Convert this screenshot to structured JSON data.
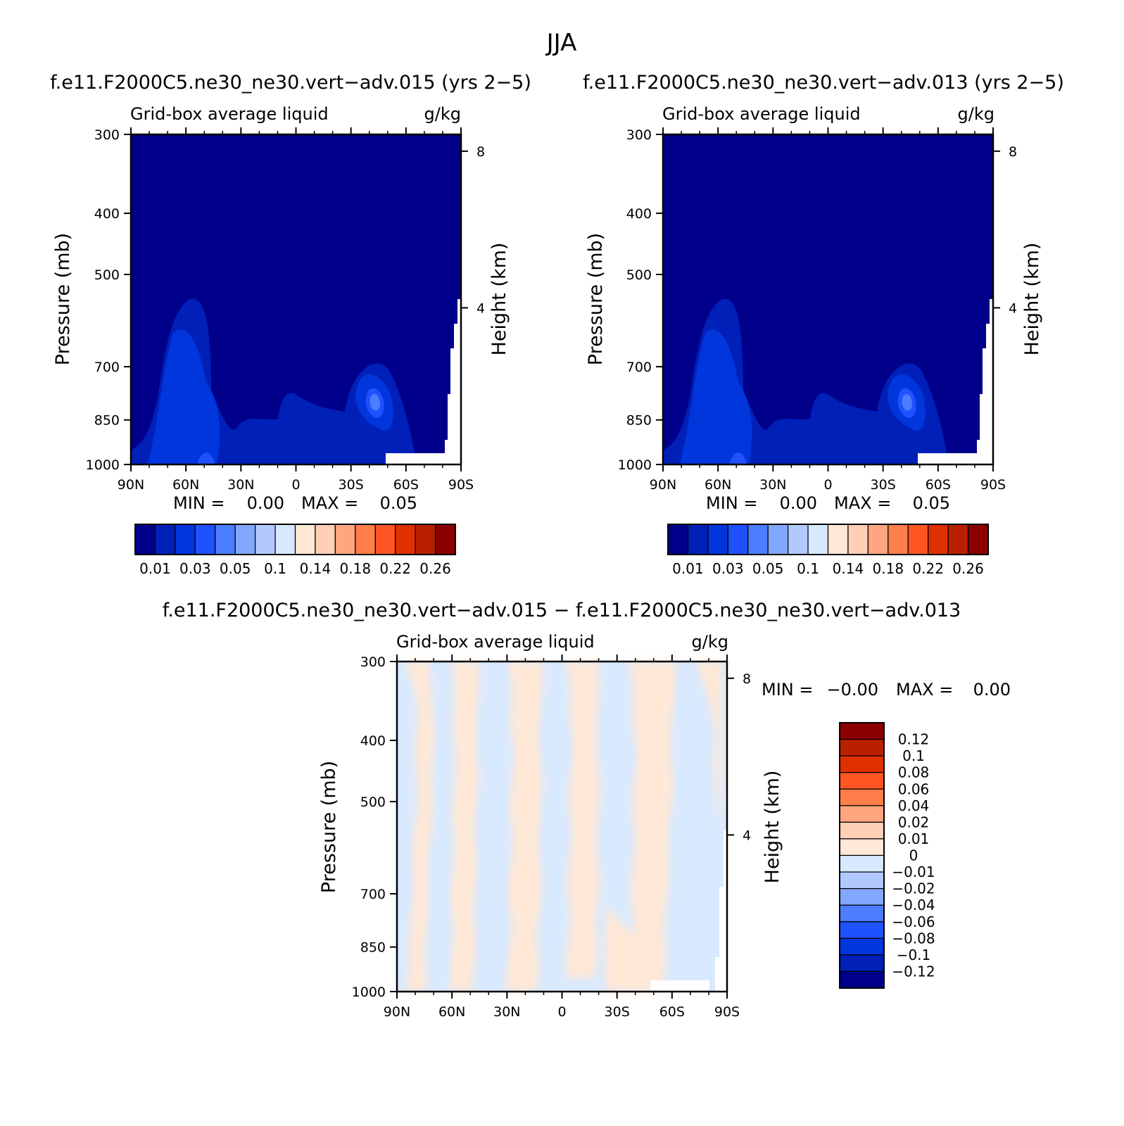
{
  "title": "JJA",
  "colors": {
    "ramp": [
      "#00008a",
      "#0020b8",
      "#0036dc",
      "#1f51ff",
      "#4c7cff",
      "#82a7ff",
      "#b2c9ff",
      "#d8e9ff",
      "#ffe8d6",
      "#ffcfb6",
      "#ffa680",
      "#ff7e4a",
      "#ff5522",
      "#e03000",
      "#b82000",
      "#8a0000"
    ]
  },
  "chart_data": [
    {
      "type": "heatmap",
      "title": "f.e11.F2000C5.ne30_ne30.vert-adv.015 (yrs 2-5)",
      "subtitle_left": "Grid-box average liquid",
      "subtitle_right": "g/kg",
      "xlabel": "",
      "ylabel": "Pressure (mb)",
      "ylabel_right": "Height (km)",
      "x_ticks": [
        "90N",
        "60N",
        "30N",
        "0",
        "30S",
        "60S",
        "90S"
      ],
      "y_ticks": [
        300,
        400,
        500,
        700,
        850,
        1000
      ],
      "y_right_ticks": [
        8,
        4
      ],
      "ylim": [
        1000,
        300
      ],
      "stats": {
        "min_label": "MIN =",
        "min": "0.00",
        "max_label": "MAX =",
        "max": "0.05"
      },
      "colorbar_labels": [
        "0.01",
        "0.03",
        "0.05",
        "0.1",
        "0.14",
        "0.18",
        "0.22",
        "0.26"
      ]
    },
    {
      "type": "heatmap",
      "title": "f.e11.F2000C5.ne30_ne30.vert-adv.013 (yrs 2-5)",
      "subtitle_left": "Grid-box average liquid",
      "subtitle_right": "g/kg",
      "xlabel": "",
      "ylabel": "Pressure (mb)",
      "ylabel_right": "Height (km)",
      "x_ticks": [
        "90N",
        "60N",
        "30N",
        "0",
        "30S",
        "60S",
        "90S"
      ],
      "y_ticks": [
        300,
        400,
        500,
        700,
        850,
        1000
      ],
      "y_right_ticks": [
        8,
        4
      ],
      "ylim": [
        1000,
        300
      ],
      "stats": {
        "min_label": "MIN =",
        "min": "0.00",
        "max_label": "MAX =",
        "max": "0.05"
      },
      "colorbar_labels": [
        "0.01",
        "0.03",
        "0.05",
        "0.1",
        "0.14",
        "0.18",
        "0.22",
        "0.26"
      ]
    },
    {
      "type": "heatmap",
      "title": "f.e11.F2000C5.ne30_ne30.vert-adv.015 - f.e11.F2000C5.ne30_ne30.vert-adv.013",
      "subtitle_left": "Grid-box average liquid",
      "subtitle_right": "g/kg",
      "xlabel": "",
      "ylabel": "Pressure (mb)",
      "ylabel_right": "Height (km)",
      "x_ticks": [
        "90N",
        "60N",
        "30N",
        "0",
        "30S",
        "60S",
        "90S"
      ],
      "y_ticks": [
        300,
        400,
        500,
        700,
        850,
        1000
      ],
      "y_right_ticks": [
        8,
        4
      ],
      "ylim": [
        1000,
        300
      ],
      "stats": {
        "min_label": "MIN =",
        "min": "-0.00",
        "max_label": "MAX =",
        "max": "0.00"
      },
      "colorbar_labels": [
        "0.12",
        "0.1",
        "0.08",
        "0.06",
        "0.04",
        "0.02",
        "0.01",
        "0",
        "-0.01",
        "-0.02",
        "-0.04",
        "-0.06",
        "-0.08",
        "-0.1",
        "-0.12"
      ]
    }
  ]
}
